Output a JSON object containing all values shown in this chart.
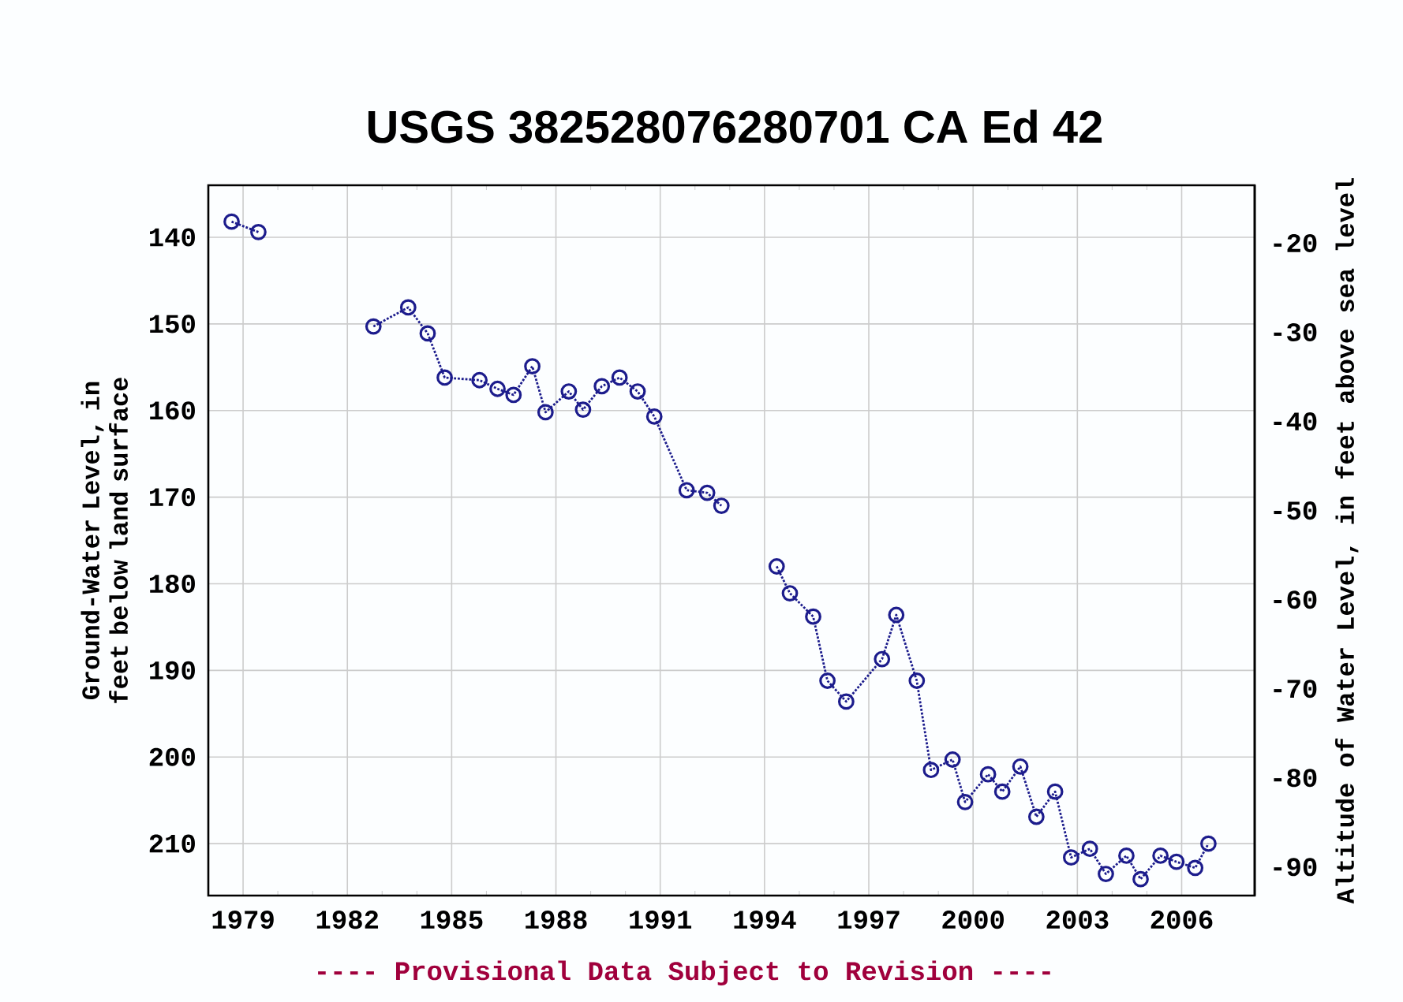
{
  "chart_data": {
    "type": "line",
    "title": "USGS 382528076280701 CA Ed  42",
    "xlabel": null,
    "ylabel": "Ground-Water Level, in feet below land surface",
    "y2label": "Altitude of Water Level, in feet above sea level",
    "annotations": [
      "---- Provisional Data Subject to Revision ----"
    ],
    "series": [
      {
        "color": "#1c1c8c",
        "x": [
          1978.67,
          1979.44
        ],
        "values": [
          138.2,
          139.4
        ]
      },
      {
        "color": "#1c1c8c",
        "x": [
          1982.75,
          1983.75,
          1984.31,
          1984.8,
          1985.8,
          1986.32,
          1986.78,
          1987.32,
          1987.7,
          1988.37,
          1988.78,
          1989.32,
          1989.83,
          1990.35,
          1990.83,
          1991.76,
          1992.35,
          1992.76
        ],
        "values": [
          150.3,
          148.1,
          151.1,
          156.2,
          156.5,
          157.5,
          158.2,
          154.9,
          160.2,
          157.8,
          159.9,
          157.2,
          156.2,
          157.8,
          160.7,
          169.2,
          169.5,
          171.0
        ]
      },
      {
        "color": "#1c1c8c",
        "x": [
          1994.35,
          1994.73,
          1995.4,
          1995.81,
          1996.35,
          1997.38,
          1997.79,
          1998.38,
          1998.79,
          1999.41,
          1999.77,
          2000.43,
          2000.84,
          2001.36,
          2001.82,
          2002.36,
          2002.82,
          2003.36,
          2003.82,
          2004.41,
          2004.82,
          2005.39,
          2005.85,
          2006.39,
          2006.77
        ],
        "values": [
          178.0,
          181.1,
          183.8,
          191.2,
          193.6,
          188.7,
          183.6,
          191.2,
          201.5,
          200.3,
          205.2,
          202.0,
          204.0,
          201.1,
          206.9,
          204.0,
          211.6,
          210.6,
          213.5,
          211.4,
          214.1,
          211.4,
          212.1,
          212.8,
          210.0
        ]
      }
    ],
    "xlim": [
      1978.0,
      2008.1
    ],
    "xticks": [
      1979,
      1982,
      1985,
      1988,
      1991,
      1994,
      1997,
      2000,
      2003,
      2006
    ],
    "ylim": [
      216,
      134
    ],
    "yticks": [
      140,
      150,
      160,
      170,
      180,
      190,
      200,
      210
    ],
    "y2lim": [
      -93.2,
      -13.5
    ],
    "y2ticks": [
      -20,
      -30,
      -40,
      -50,
      -60,
      -70,
      -80,
      -90
    ],
    "grid": true,
    "marker": "circle",
    "line_style": "dotted"
  }
}
